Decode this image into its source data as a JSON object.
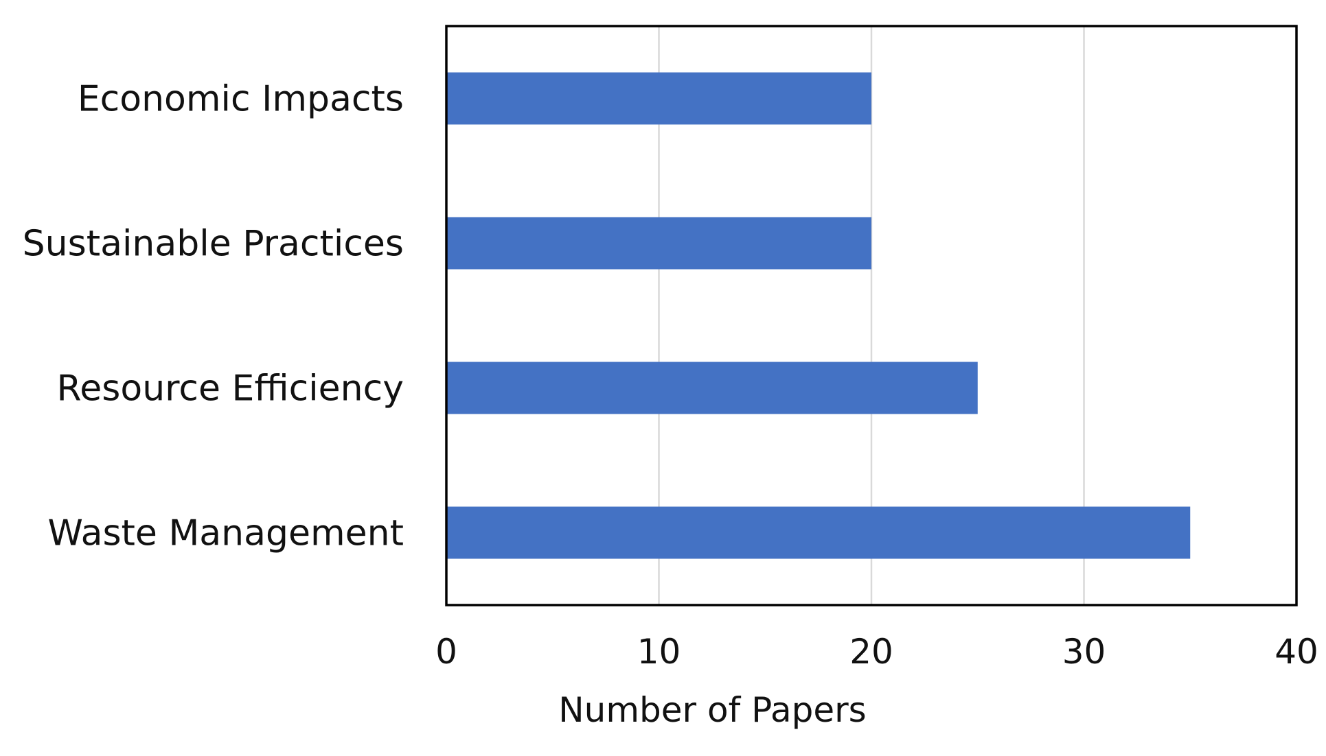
{
  "chart_data": {
    "type": "bar",
    "orientation": "horizontal",
    "categories": [
      "Economic Impacts",
      "Sustainable Practices",
      "Resource Efficiency",
      "Waste Management"
    ],
    "values": [
      20,
      20,
      25,
      35
    ],
    "xlabel": "Number of Papers",
    "ylabel": "",
    "title": "",
    "xlim": [
      0,
      40
    ],
    "xticks": [
      0,
      10,
      20,
      30,
      40
    ],
    "xtick_labels": [
      "0",
      "10",
      "20",
      "30",
      "40"
    ],
    "grid": "vertical",
    "legend": "none",
    "bar_color": "#4472C4",
    "grid_color": "#D9D9D9",
    "axis_color": "#000000"
  }
}
